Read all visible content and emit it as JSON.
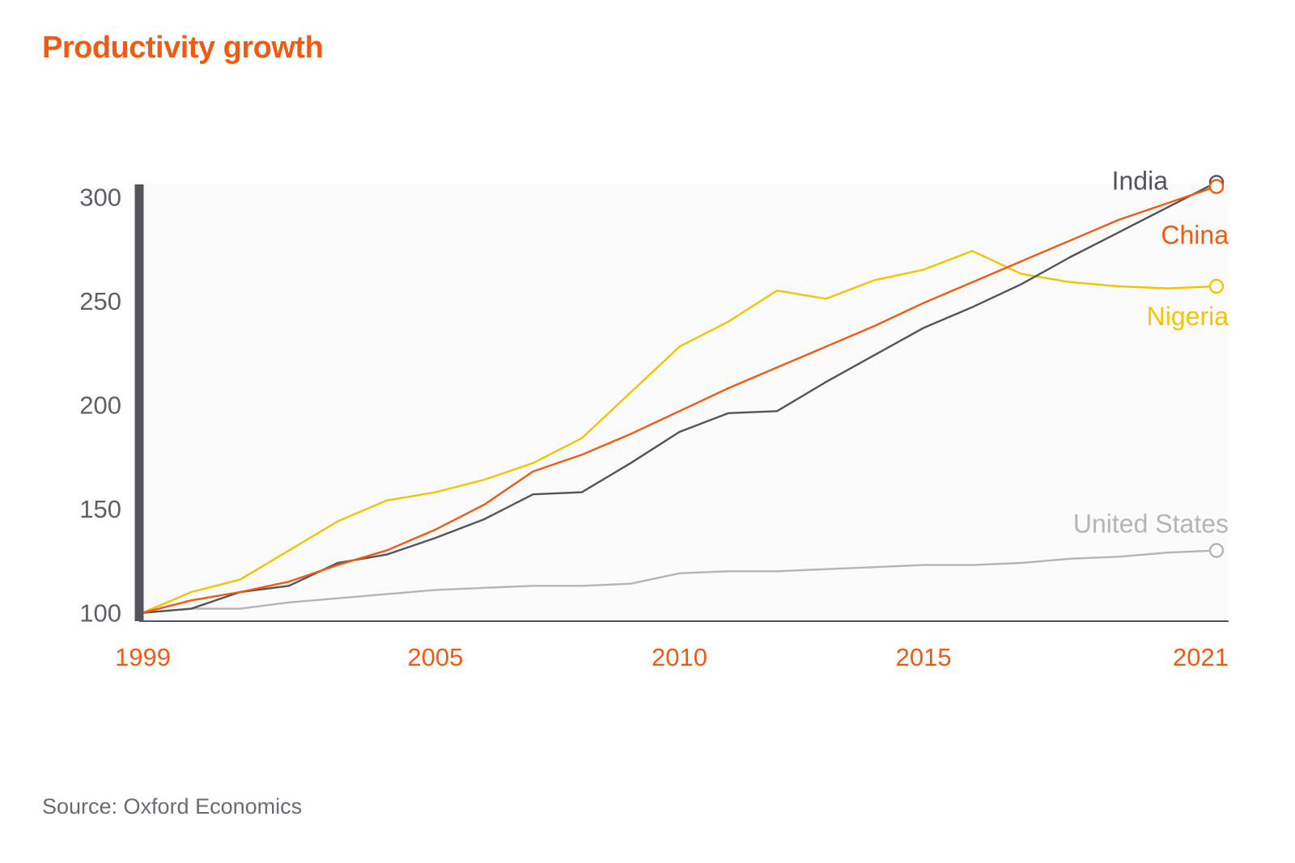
{
  "title": "Productivity growth",
  "source": "Source: Oxford Economics",
  "colors": {
    "title": "#f25a12",
    "axis": "#54545c",
    "x_tick": "#f25a12",
    "y_tick": "#5f5f66",
    "plot_bg": "#fbfbfb"
  },
  "chart_data": {
    "type": "line",
    "title": "Productivity growth",
    "xlabel": "",
    "ylabel": "",
    "xlim": [
      1999,
      2021
    ],
    "ylim": [
      96,
      306
    ],
    "x_ticks": [
      "1999",
      "2005",
      "2010",
      "2015",
      "2021"
    ],
    "y_ticks": [
      "100",
      "150",
      "200",
      "250",
      "300"
    ],
    "grid": false,
    "legend": "end-of-line labels",
    "x": [
      1999,
      2000,
      2001,
      2002,
      2003,
      2004,
      2005,
      2006,
      2007,
      2008,
      2009,
      2010,
      2011,
      2012,
      2013,
      2014,
      2015,
      2016,
      2017,
      2018,
      2019,
      2020,
      2021
    ],
    "series": [
      {
        "name": "United States",
        "color": "#b5b5b8",
        "values": [
          100,
          102,
          102,
          105,
          107,
          109,
          111,
          112,
          113,
          113,
          114,
          119,
          120,
          120,
          121,
          122,
          123,
          123,
          124,
          126,
          127,
          129,
          130
        ]
      },
      {
        "name": "Nigeria",
        "color": "#f5c400",
        "values": [
          100,
          110,
          116,
          130,
          144,
          154,
          158,
          164,
          172,
          184,
          206,
          228,
          240,
          255,
          251,
          260,
          265,
          274,
          263,
          259,
          257,
          256,
          257
        ]
      },
      {
        "name": "India",
        "color": "#54545c",
        "values": [
          100,
          102,
          110,
          113,
          124,
          128,
          136,
          145,
          157,
          158,
          172,
          187,
          196,
          197,
          211,
          224,
          237,
          247,
          258,
          271,
          283,
          295,
          307
        ]
      },
      {
        "name": "China",
        "color": "#f25a12",
        "values": [
          100,
          106,
          110,
          115,
          123,
          130,
          140,
          152,
          168,
          176,
          186,
          197,
          208,
          218,
          228,
          238,
          249,
          259,
          269,
          279,
          289,
          297,
          305
        ]
      }
    ]
  }
}
